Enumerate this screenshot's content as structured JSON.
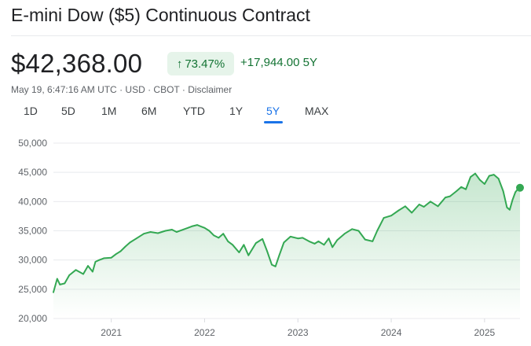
{
  "header": {
    "title": "E-mini Dow ($5) Continuous Contract",
    "price": "$42,368.00",
    "pct_change": "73.47%",
    "abs_change": "+17,944.00 5Y"
  },
  "meta": {
    "timestamp": "May 19, 6:47:16 AM UTC",
    "currency": "USD",
    "exchange": "CBOT",
    "disclaimer": "Disclaimer",
    "sep": " · "
  },
  "tabs": [
    {
      "label": "1D"
    },
    {
      "label": "5D"
    },
    {
      "label": "1M"
    },
    {
      "label": "6M"
    },
    {
      "label": "YTD"
    },
    {
      "label": "1Y"
    },
    {
      "label": "5Y",
      "active": true
    },
    {
      "label": "MAX"
    }
  ],
  "colors": {
    "line": "#34a853",
    "fill_top": "#34a853",
    "grid": "#e8eaed",
    "accent": "#1a73e8",
    "positive": "#137333"
  },
  "chart_data": {
    "type": "area",
    "title": "E-mini Dow ($5) Continuous Contract",
    "xlabel": "",
    "ylabel": "",
    "ylim": [
      20000,
      50000
    ],
    "xlim": [
      2020.38,
      2025.38
    ],
    "yticks": [
      "50,000",
      "45,000",
      "40,000",
      "35,000",
      "30,000",
      "25,000",
      "20,000"
    ],
    "ytick_values": [
      50000,
      45000,
      40000,
      35000,
      30000,
      25000,
      20000
    ],
    "xticks": [
      "2021",
      "2022",
      "2023",
      "2024",
      "2025"
    ],
    "xtick_values": [
      2021,
      2022,
      2023,
      2024,
      2025
    ],
    "grid": true,
    "series": [
      {
        "name": "E-mini Dow ($5)",
        "x": [
          2020.38,
          2020.42,
          2020.45,
          2020.5,
          2020.55,
          2020.62,
          2020.7,
          2020.75,
          2020.8,
          2020.83,
          2020.87,
          2020.92,
          2021.0,
          2021.05,
          2021.1,
          2021.15,
          2021.2,
          2021.27,
          2021.35,
          2021.42,
          2021.5,
          2021.58,
          2021.65,
          2021.7,
          2021.75,
          2021.82,
          2021.87,
          2021.92,
          2022.0,
          2022.05,
          2022.1,
          2022.15,
          2022.2,
          2022.25,
          2022.3,
          2022.37,
          2022.42,
          2022.47,
          2022.55,
          2022.62,
          2022.67,
          2022.72,
          2022.76,
          2022.8,
          2022.85,
          2022.92,
          2023.0,
          2023.05,
          2023.12,
          2023.18,
          2023.22,
          2023.28,
          2023.33,
          2023.37,
          2023.42,
          2023.5,
          2023.58,
          2023.65,
          2023.72,
          2023.8,
          2023.85,
          2023.92,
          2024.0,
          2024.08,
          2024.15,
          2024.22,
          2024.3,
          2024.35,
          2024.42,
          2024.5,
          2024.58,
          2024.63,
          2024.7,
          2024.75,
          2024.8,
          2024.85,
          2024.9,
          2024.95,
          2025.0,
          2025.05,
          2025.1,
          2025.15,
          2025.2,
          2025.24,
          2025.27,
          2025.3,
          2025.33,
          2025.36,
          2025.38
        ],
        "values": [
          24500,
          26800,
          25800,
          26000,
          27400,
          28300,
          27600,
          29000,
          28000,
          29700,
          30000,
          30300,
          30400,
          31000,
          31500,
          32300,
          33000,
          33700,
          34500,
          34800,
          34600,
          35000,
          35200,
          34800,
          35100,
          35500,
          35800,
          36000,
          35500,
          35000,
          34200,
          33800,
          34500,
          33200,
          32600,
          31300,
          32600,
          30800,
          32900,
          33600,
          31500,
          29200,
          28900,
          30800,
          33000,
          34000,
          33700,
          33800,
          33200,
          32800,
          33200,
          32600,
          33700,
          32200,
          33400,
          34500,
          35300,
          35000,
          33500,
          33200,
          35000,
          37200,
          37600,
          38500,
          39200,
          38100,
          39500,
          39100,
          40000,
          39200,
          40700,
          40900,
          41800,
          42500,
          42100,
          44200,
          44800,
          43700,
          43000,
          44400,
          44600,
          43900,
          41800,
          39000,
          38600,
          40300,
          41600,
          42200,
          42368
        ]
      }
    ]
  }
}
